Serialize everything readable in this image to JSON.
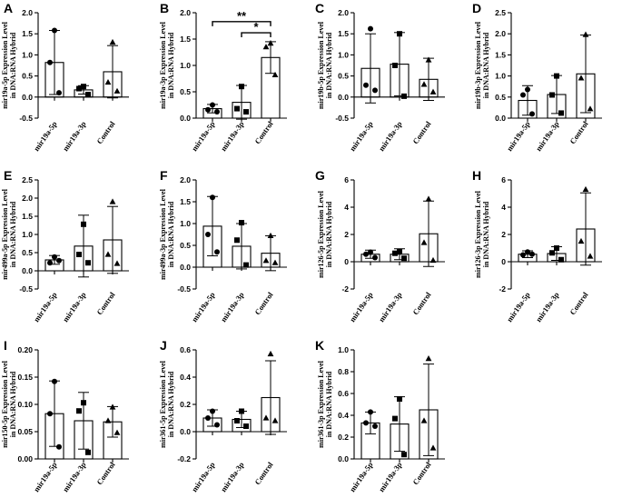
{
  "chart_data": [
    {
      "panel": "A",
      "type": "bar",
      "ylabel": [
        "mir19a-5p Expression Level",
        "in DNA:RNA Hybrid"
      ],
      "ylim": [
        -0.5,
        2.0
      ],
      "yticks": [
        -0.5,
        0.0,
        0.5,
        1.0,
        1.5,
        2.0
      ],
      "ytick_labels": [
        "-0.5",
        "0.0",
        "0.5",
        "1.0",
        "1.5",
        "2.0"
      ],
      "categories": [
        "mir19a-5p",
        "mir19a-3p",
        "Control"
      ],
      "means": [
        0.82,
        0.17,
        0.6
      ],
      "errors": [
        0.76,
        0.1,
        0.62
      ],
      "points": [
        [
          1.58,
          0.82,
          0.1
        ],
        [
          0.25,
          0.2,
          0.06
        ],
        [
          1.3,
          0.35,
          0.14
        ]
      ],
      "significance": []
    },
    {
      "panel": "B",
      "type": "bar",
      "ylabel": [
        "mir19a-3p Expression Level",
        "in DNA:RNA Hybrid"
      ],
      "ylim": [
        0.0,
        2.0
      ],
      "yticks": [
        0.0,
        0.5,
        1.0,
        1.5,
        2.0
      ],
      "ytick_labels": [
        "0.0",
        "0.5",
        "1.0",
        "1.5",
        "2.0"
      ],
      "categories": [
        "mir19a-5p",
        "mir19a-3p",
        "Control"
      ],
      "means": [
        0.18,
        0.3,
        1.15
      ],
      "errors": [
        0.08,
        0.32,
        0.3
      ],
      "points": [
        [
          0.25,
          0.16,
          0.12
        ],
        [
          0.6,
          0.18,
          0.12
        ],
        [
          1.42,
          1.35,
          0.82
        ]
      ],
      "significance": [
        {
          "from": 0,
          "to": 2,
          "label": "**",
          "y": 1.83
        },
        {
          "from": 1,
          "to": 2,
          "label": "*",
          "y": 1.62
        }
      ]
    },
    {
      "panel": "C",
      "type": "bar",
      "ylabel": [
        "mir19b-5p Expression Level",
        "in DNA:RNA Hybrid"
      ],
      "ylim": [
        -0.5,
        2.0
      ],
      "yticks": [
        -0.5,
        0.0,
        0.5,
        1.0,
        1.5,
        2.0
      ],
      "ytick_labels": [
        "-0.5",
        "0.0",
        "0.5",
        "1.0",
        "1.5",
        "2.0"
      ],
      "categories": [
        "mir19a-5p",
        "mir19a-3p",
        "Control"
      ],
      "means": [
        0.68,
        0.78,
        0.42
      ],
      "errors": [
        0.82,
        0.75,
        0.5
      ],
      "points": [
        [
          1.62,
          0.28,
          0.16
        ],
        [
          1.5,
          0.75,
          0.02
        ],
        [
          0.88,
          0.3,
          0.12
        ]
      ],
      "significance": []
    },
    {
      "panel": "D",
      "type": "bar",
      "ylabel": [
        "mir19b-3p Expression Level",
        "in DNA:RNA Hybrid"
      ],
      "ylim": [
        0.0,
        2.5
      ],
      "yticks": [
        0.0,
        0.5,
        1.0,
        1.5,
        2.0,
        2.5
      ],
      "ytick_labels": [
        "0.0",
        "0.5",
        "1.0",
        "1.5",
        "2.0",
        "2.5"
      ],
      "categories": [
        "mir19a-5p",
        "mir19a-3p",
        "Control"
      ],
      "means": [
        0.42,
        0.56,
        1.05
      ],
      "errors": [
        0.35,
        0.45,
        0.92
      ],
      "points": [
        [
          0.68,
          0.55,
          0.1
        ],
        [
          1.0,
          0.55,
          0.12
        ],
        [
          1.98,
          0.95,
          0.22
        ]
      ],
      "significance": []
    },
    {
      "panel": "E",
      "type": "bar",
      "ylabel": [
        "mir499a-5p Expression Level",
        "in DNA:RNA Hybrid"
      ],
      "ylim": [
        -0.5,
        2.5
      ],
      "yticks": [
        -0.5,
        0.0,
        0.5,
        1.0,
        1.5,
        2.0,
        2.5
      ],
      "ytick_labels": [
        "-0.5",
        "0.0",
        "0.5",
        "1.0",
        "1.5",
        "2.0",
        "2.5"
      ],
      "categories": [
        "mir19a-5p",
        "mir19a-3p",
        "Control"
      ],
      "means": [
        0.3,
        0.68,
        0.85
      ],
      "errors": [
        0.12,
        0.85,
        0.92
      ],
      "points": [
        [
          0.38,
          0.22,
          0.28
        ],
        [
          1.28,
          0.45,
          0.22
        ],
        [
          1.9,
          0.45,
          0.2
        ]
      ],
      "significance": []
    },
    {
      "panel": "F",
      "type": "bar",
      "ylabel": [
        "mir499a-3p Expression Level",
        "in DNA:RNA Hybrid"
      ],
      "ylim": [
        -0.5,
        2.0
      ],
      "yticks": [
        -0.5,
        0.0,
        0.5,
        1.0,
        1.5,
        2.0
      ],
      "ytick_labels": [
        "-0.5",
        "0.0",
        "0.5",
        "1.0",
        "1.5",
        "2.0"
      ],
      "categories": [
        "mir19a-5p",
        "mir19a-3p",
        "Control"
      ],
      "means": [
        0.94,
        0.48,
        0.32
      ],
      "errors": [
        0.68,
        0.52,
        0.4
      ],
      "points": [
        [
          1.6,
          0.75,
          0.35
        ],
        [
          1.02,
          0.62,
          0.05
        ],
        [
          0.72,
          0.15,
          0.1
        ]
      ],
      "significance": []
    },
    {
      "panel": "G",
      "type": "bar",
      "ylabel": [
        "mir126-5p Expression Level",
        "in DNA:RNA Hybrid"
      ],
      "ylim": [
        -2,
        6
      ],
      "yticks": [
        -2,
        0,
        2,
        4,
        6
      ],
      "ytick_labels": [
        "-2",
        "0",
        "2",
        "4",
        "6"
      ],
      "categories": [
        "mir19a-5p",
        "mir19a-3p",
        "Control"
      ],
      "means": [
        0.55,
        0.55,
        2.05
      ],
      "errors": [
        0.3,
        0.4,
        2.4
      ],
      "points": [
        [
          0.7,
          0.55,
          0.3
        ],
        [
          0.75,
          0.62,
          0.25
        ],
        [
          4.6,
          1.4,
          0.1
        ]
      ],
      "significance": []
    },
    {
      "panel": "H",
      "type": "bar",
      "ylabel": [
        "mir126-3p Expression Level",
        "in DNA:RNA Hybrid"
      ],
      "ylim": [
        -2,
        6
      ],
      "yticks": [
        -2,
        0,
        2,
        4,
        6
      ],
      "ytick_labels": [
        "-2",
        "0",
        "2",
        "4",
        "6"
      ],
      "categories": [
        "mir19a-5p",
        "mir19a-3p",
        "Control"
      ],
      "means": [
        0.55,
        0.6,
        2.4
      ],
      "errors": [
        0.25,
        0.5,
        2.65
      ],
      "points": [
        [
          0.72,
          0.5,
          0.55
        ],
        [
          1.0,
          0.65,
          0.15
        ],
        [
          5.3,
          1.5,
          0.4
        ]
      ],
      "significance": []
    },
    {
      "panel": "I",
      "type": "bar",
      "ylabel": [
        "mir150-5p Expression Level",
        "in DNA:RNA Hybrid"
      ],
      "ylim": [
        0.0,
        0.2
      ],
      "yticks": [
        0.0,
        0.05,
        0.1,
        0.15,
        0.2
      ],
      "ytick_labels": [
        "0.00",
        "0.05",
        "0.10",
        "0.15",
        "0.20"
      ],
      "categories": [
        "mir19a-5p",
        "mir19a-3p",
        "Control"
      ],
      "means": [
        0.083,
        0.07,
        0.068
      ],
      "errors": [
        0.06,
        0.052,
        0.028
      ],
      "points": [
        [
          0.142,
          0.083,
          0.022
        ],
        [
          0.103,
          0.088,
          0.012
        ],
        [
          0.095,
          0.07,
          0.048
        ]
      ],
      "significance": []
    },
    {
      "panel": "J",
      "type": "bar",
      "ylabel": [
        "mir361-5p Expression Level",
        "in DNA:RNA Hybrid"
      ],
      "ylim": [
        -0.2,
        0.6
      ],
      "yticks": [
        -0.2,
        0.0,
        0.2,
        0.4,
        0.6
      ],
      "ytick_labels": [
        "-0.2",
        "0.0",
        "0.2",
        "0.4",
        "0.6"
      ],
      "categories": [
        "mir19a-5p",
        "mir19a-3p",
        "Control"
      ],
      "means": [
        0.1,
        0.09,
        0.25
      ],
      "errors": [
        0.06,
        0.06,
        0.27
      ],
      "points": [
        [
          0.15,
          0.1,
          0.05
        ],
        [
          0.15,
          0.08,
          0.04
        ],
        [
          0.57,
          0.1,
          0.08
        ]
      ],
      "significance": []
    },
    {
      "panel": "K",
      "type": "bar",
      "ylabel": [
        "mir361-3p Expression Level",
        "in DNA:RNA Hybrid"
      ],
      "ylim": [
        0.0,
        1.0
      ],
      "yticks": [
        0.0,
        0.2,
        0.4,
        0.6,
        0.8,
        1.0
      ],
      "ytick_labels": [
        "0.0",
        "0.2",
        "0.4",
        "0.6",
        "0.8",
        "1.0"
      ],
      "categories": [
        "mir19a-5p",
        "mir19a-3p",
        "Control"
      ],
      "means": [
        0.33,
        0.32,
        0.45
      ],
      "errors": [
        0.1,
        0.25,
        0.42
      ],
      "points": [
        [
          0.43,
          0.33,
          0.3
        ],
        [
          0.55,
          0.37,
          0.04
        ],
        [
          0.92,
          0.35,
          0.1
        ]
      ],
      "significance": []
    }
  ]
}
